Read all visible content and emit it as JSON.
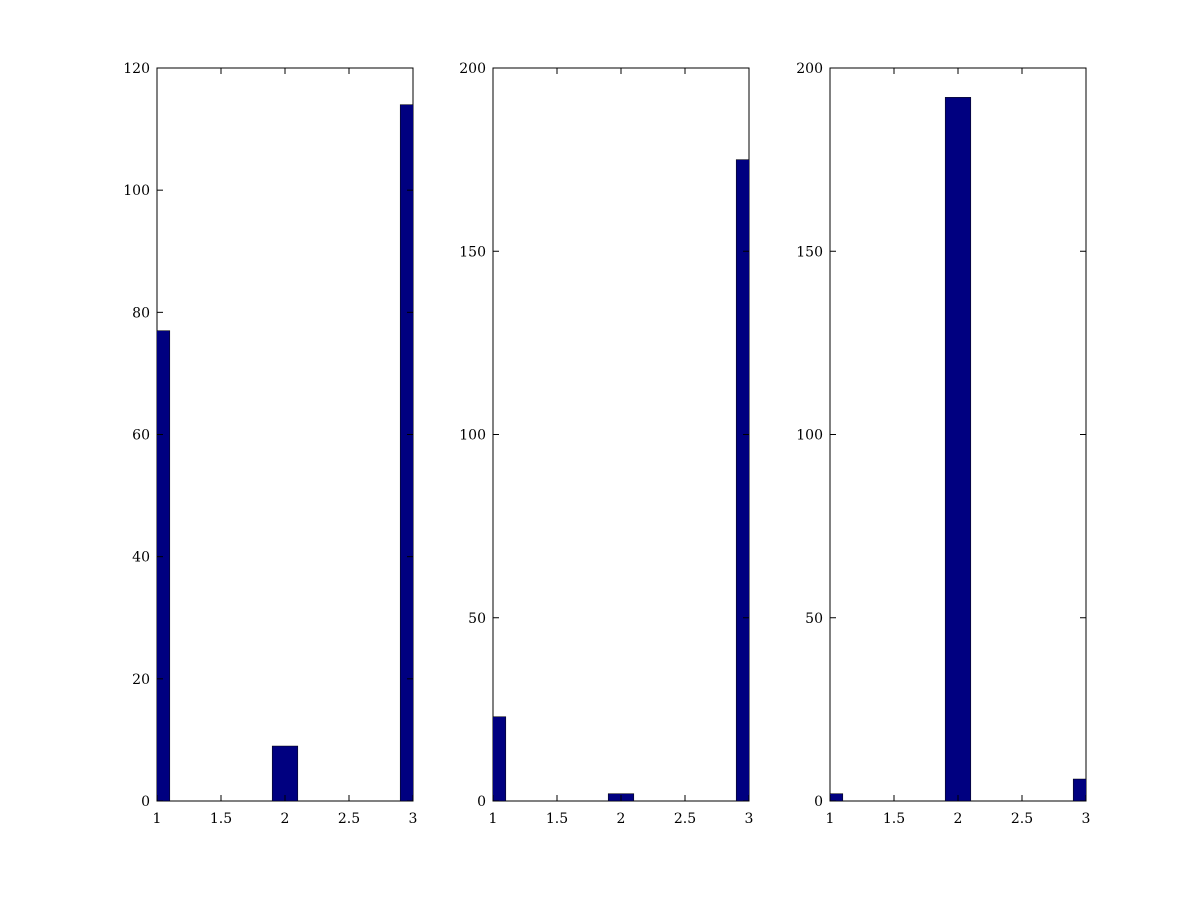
{
  "chart_data": [
    {
      "type": "bar",
      "x": [
        1,
        2,
        3
      ],
      "values": [
        77,
        9,
        114
      ],
      "xlim": [
        1,
        3
      ],
      "ylim": [
        0,
        120
      ],
      "xticks": [
        "1",
        "1.5",
        "2",
        "2.5",
        "3"
      ],
      "yticks": [
        "0",
        "20",
        "40",
        "60",
        "80",
        "100",
        "120"
      ],
      "bar_color": "#000080",
      "grid": false
    },
    {
      "type": "bar",
      "x": [
        1,
        2,
        3
      ],
      "values": [
        23,
        2,
        175
      ],
      "xlim": [
        1,
        3
      ],
      "ylim": [
        0,
        200
      ],
      "xticks": [
        "1",
        "1.5",
        "2",
        "2.5",
        "3"
      ],
      "yticks": [
        "0",
        "50",
        "100",
        "150",
        "200"
      ],
      "bar_color": "#000080",
      "grid": false
    },
    {
      "type": "bar",
      "x": [
        1,
        2,
        3
      ],
      "values": [
        2,
        192,
        6
      ],
      "xlim": [
        1,
        3
      ],
      "ylim": [
        0,
        200
      ],
      "xticks": [
        "1",
        "1.5",
        "2",
        "2.5",
        "3"
      ],
      "yticks": [
        "0",
        "50",
        "100",
        "150",
        "200"
      ],
      "bar_color": "#000080",
      "grid": false
    }
  ]
}
